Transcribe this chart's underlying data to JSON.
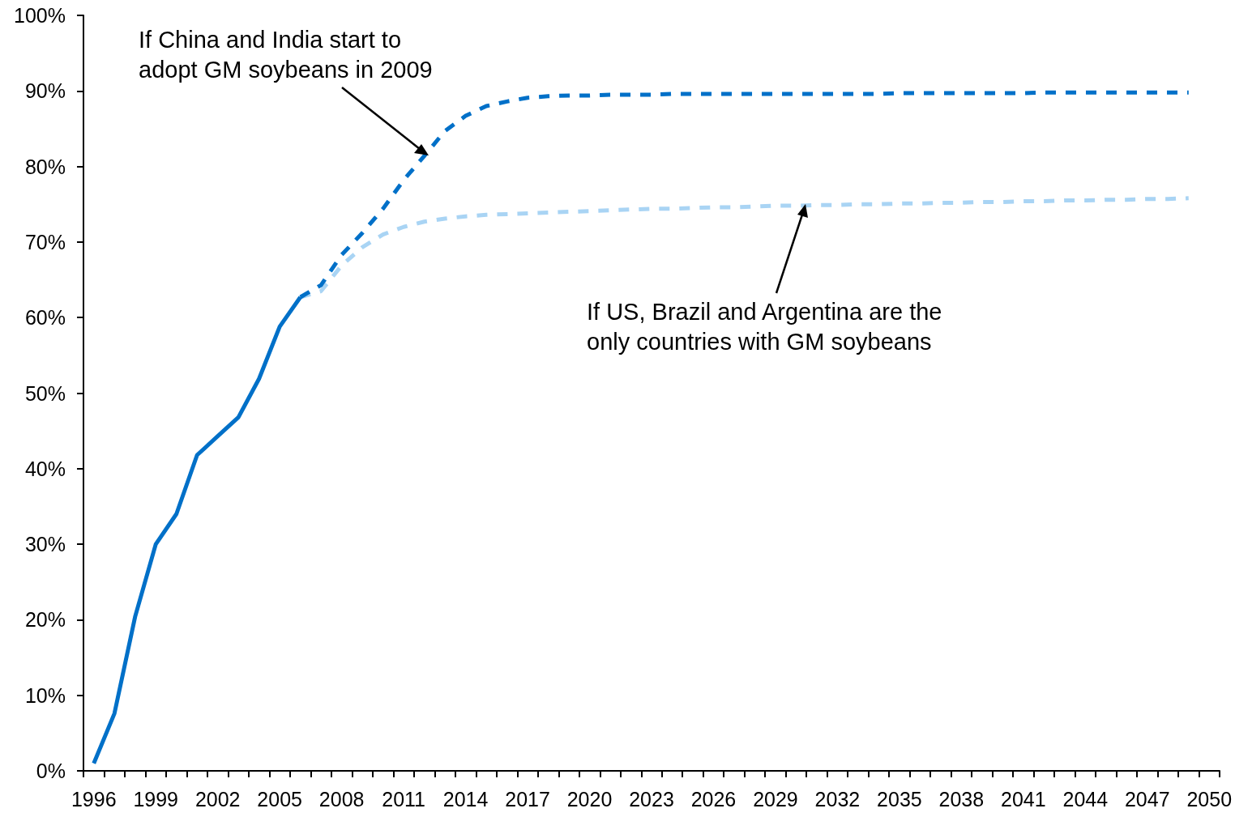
{
  "chart_data": {
    "type": "line",
    "categories": [
      "1996",
      null,
      null,
      "1999",
      null,
      null,
      "2002",
      null,
      null,
      "2005",
      null,
      null,
      "2008",
      null,
      null,
      "2011",
      null,
      null,
      "2014",
      null,
      null,
      "2017",
      null,
      null,
      "2020",
      null,
      null,
      "2023",
      null,
      null,
      "2026",
      null,
      null,
      "2029",
      null,
      null,
      "2032",
      null,
      null,
      "2035",
      null,
      null,
      "2038",
      null,
      null,
      "2041",
      null,
      null,
      "2044",
      null,
      null,
      "2047",
      null,
      null,
      "2050"
    ],
    "series": [
      {
        "color": "#a9d4f4",
        "line_style": "dashed",
        "values": [
          null,
          null,
          null,
          null,
          null,
          null,
          null,
          null,
          null,
          null,
          62.7,
          63.5,
          66.9,
          69.3,
          71.0,
          72.0,
          72.7,
          73.1,
          73.4,
          73.6,
          73.7,
          73.8,
          73.9,
          74.0,
          74.1,
          74.2,
          74.3,
          74.4,
          74.4,
          74.5,
          74.6,
          74.6,
          74.7,
          74.8,
          74.8,
          74.9,
          74.9,
          75.0,
          75.0,
          75.1,
          75.1,
          75.2,
          75.2,
          75.3,
          75.3,
          75.4,
          75.4,
          75.5,
          75.5,
          75.6,
          75.6,
          75.7,
          75.7,
          75.8,
          null
        ]
      },
      {
        "color": "#0070c8",
        "line_style": "dashed",
        "values": [
          null,
          null,
          null,
          null,
          null,
          null,
          null,
          null,
          null,
          null,
          62.7,
          64.3,
          68.3,
          71.2,
          74.4,
          78.2,
          81.4,
          84.7,
          86.7,
          88.0,
          88.6,
          89.1,
          89.3,
          89.4,
          89.4,
          89.5,
          89.5,
          89.5,
          89.6,
          89.6,
          89.6,
          89.6,
          89.6,
          89.6,
          89.6,
          89.6,
          89.6,
          89.6,
          89.6,
          89.7,
          89.7,
          89.7,
          89.7,
          89.7,
          89.7,
          89.7,
          89.8,
          89.8,
          89.8,
          89.8,
          89.8,
          89.8,
          89.8,
          89.8,
          null
        ]
      },
      {
        "color": "#0070c8",
        "line_style": "solid",
        "values": [
          1.0,
          7.6,
          20.4,
          30.0,
          34.0,
          41.8,
          44.3,
          46.8,
          51.9,
          58.8,
          62.7,
          null,
          null,
          null,
          null,
          null,
          null,
          null,
          null,
          null,
          null,
          null,
          null,
          null,
          null,
          null,
          null,
          null,
          null,
          null,
          null,
          null,
          null,
          null,
          null,
          null,
          null,
          null,
          null,
          null,
          null,
          null,
          null,
          null,
          null,
          null,
          null,
          null,
          null,
          null,
          null,
          null,
          null,
          null,
          null
        ]
      }
    ],
    "ylim": [
      0,
      100
    ],
    "yticks": [
      {
        "value": 0,
        "label": "0%"
      },
      {
        "value": 10,
        "label": "10%"
      },
      {
        "value": 20,
        "label": "20%"
      },
      {
        "value": 30,
        "label": "30%"
      },
      {
        "value": 40,
        "label": "40%"
      },
      {
        "value": 50,
        "label": "50%"
      },
      {
        "value": 60,
        "label": "60%"
      },
      {
        "value": 70,
        "label": "70%"
      },
      {
        "value": 80,
        "label": "80%"
      },
      {
        "value": 90,
        "label": "90%"
      },
      {
        "value": 100,
        "label": "100%"
      }
    ],
    "grid": false,
    "marker": "none",
    "annotations": [
      "If China and India start to\nadopt GM soybeans in 2009",
      "If US, Brazil and Argentina are the\nonly countries with GM soybeans"
    ]
  }
}
